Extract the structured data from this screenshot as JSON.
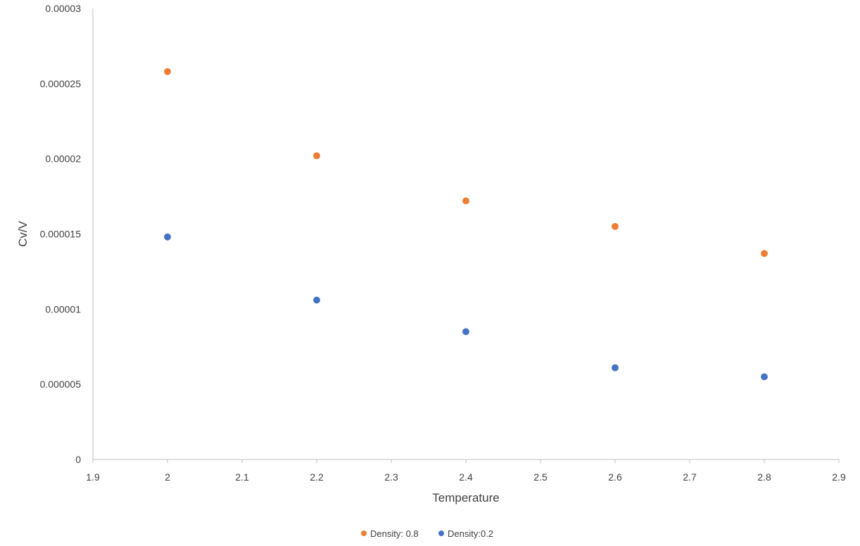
{
  "chart_data": {
    "type": "scatter",
    "title": "",
    "xlabel": "Temperature",
    "ylabel": "Cv/V",
    "xlim": [
      1.9,
      2.9
    ],
    "ylim": [
      0,
      3e-05
    ],
    "x_ticks": [
      "1.9",
      "2",
      "2.1",
      "2.2",
      "2.3",
      "2.4",
      "2.5",
      "2.6",
      "2.7",
      "2.8",
      "2.9"
    ],
    "y_ticks": [
      "0",
      "0.000005",
      "0.00001",
      "0.000015",
      "0.00002",
      "0.000025",
      "0.00003"
    ],
    "grid": false,
    "legend_position": "bottom",
    "series": [
      {
        "name": "Density: 0.8",
        "color": "#ED7D31",
        "points": [
          {
            "x": 2.0,
            "y": 2.58e-05
          },
          {
            "x": 2.2,
            "y": 2.02e-05
          },
          {
            "x": 2.4,
            "y": 1.72e-05
          },
          {
            "x": 2.6,
            "y": 1.55e-05
          },
          {
            "x": 2.8,
            "y": 1.37e-05
          }
        ]
      },
      {
        "name": "Density:0.2",
        "color": "#4472C4",
        "points": [
          {
            "x": 2.0,
            "y": 1.48e-05
          },
          {
            "x": 2.2,
            "y": 1.06e-05
          },
          {
            "x": 2.4,
            "y": 8.5e-06
          },
          {
            "x": 2.6,
            "y": 6.1e-06
          },
          {
            "x": 2.8,
            "y": 5.5e-06
          }
        ]
      }
    ]
  }
}
